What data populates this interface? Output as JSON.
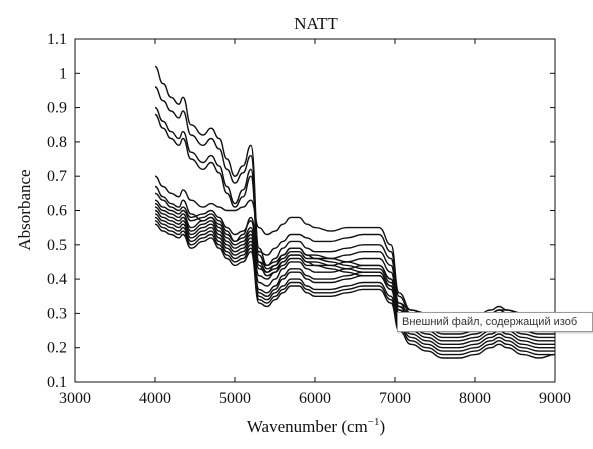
{
  "chart_data": {
    "type": "line",
    "title": "NATT",
    "xlabel": "Wavenumber (cm",
    "xlabel_sup": "−1",
    "xlabel_close": ")",
    "ylabel": "Absorbance",
    "xlim": [
      3000,
      9000
    ],
    "ylim": [
      0.1,
      1.1
    ],
    "xticks": [
      3000,
      4000,
      5000,
      6000,
      7000,
      8000,
      9000
    ],
    "xtick_labels": [
      "3000",
      "4000",
      "5000",
      "6000",
      "7000",
      "8000",
      "9000"
    ],
    "yticks": [
      0.1,
      0.2,
      0.3,
      0.4,
      0.5,
      0.6,
      0.7,
      0.8,
      0.9,
      1.0,
      1.1
    ],
    "ytick_labels": [
      "0.1",
      "0.2",
      "0.3",
      "0.4",
      "0.5",
      "0.6",
      "0.7",
      "0.8",
      "0.9",
      "1",
      "1.1"
    ],
    "grid": false,
    "line_color": "#111111",
    "profile_x": [
      4000,
      4100,
      4200,
      4300,
      4350,
      4450,
      4600,
      4700,
      4800,
      4900,
      5000,
      5100,
      5200,
      5300,
      5400,
      5500,
      5600,
      5700,
      5800,
      5900,
      6000,
      6200,
      6400,
      6600,
      6800,
      6950,
      7050,
      7200,
      7400,
      7600,
      7800,
      8000,
      8200,
      8300,
      8400,
      8600,
      8800,
      9000
    ],
    "series": [
      {
        "values": [
          1.02,
          0.97,
          0.93,
          0.91,
          0.93,
          0.85,
          0.82,
          0.84,
          0.81,
          0.75,
          0.7,
          0.73,
          0.79,
          0.49,
          0.44,
          0.45,
          0.47,
          0.49,
          0.49,
          0.47,
          0.47,
          0.46,
          0.45,
          0.44,
          0.44,
          0.4,
          0.33,
          0.31,
          0.3,
          0.28,
          0.28,
          0.29,
          0.3,
          0.31,
          0.31,
          0.3,
          0.29,
          0.29
        ]
      },
      {
        "values": [
          0.96,
          0.92,
          0.89,
          0.87,
          0.89,
          0.82,
          0.79,
          0.81,
          0.78,
          0.72,
          0.68,
          0.71,
          0.76,
          0.47,
          0.43,
          0.44,
          0.46,
          0.48,
          0.48,
          0.46,
          0.46,
          0.45,
          0.44,
          0.43,
          0.43,
          0.39,
          0.32,
          0.3,
          0.29,
          0.27,
          0.27,
          0.28,
          0.29,
          0.3,
          0.3,
          0.29,
          0.28,
          0.28
        ]
      },
      {
        "values": [
          0.9,
          0.86,
          0.83,
          0.81,
          0.83,
          0.77,
          0.74,
          0.76,
          0.73,
          0.67,
          0.62,
          0.66,
          0.72,
          0.45,
          0.42,
          0.43,
          0.45,
          0.47,
          0.47,
          0.45,
          0.45,
          0.44,
          0.43,
          0.42,
          0.42,
          0.38,
          0.31,
          0.29,
          0.28,
          0.26,
          0.26,
          0.27,
          0.28,
          0.29,
          0.29,
          0.28,
          0.27,
          0.27
        ]
      },
      {
        "values": [
          0.88,
          0.84,
          0.81,
          0.79,
          0.81,
          0.75,
          0.72,
          0.74,
          0.71,
          0.65,
          0.61,
          0.64,
          0.7,
          0.44,
          0.41,
          0.42,
          0.44,
          0.46,
          0.46,
          0.44,
          0.44,
          0.43,
          0.42,
          0.41,
          0.41,
          0.37,
          0.3,
          0.28,
          0.27,
          0.25,
          0.25,
          0.26,
          0.27,
          0.28,
          0.28,
          0.27,
          0.26,
          0.26
        ]
      },
      {
        "values": [
          0.7,
          0.67,
          0.65,
          0.64,
          0.66,
          0.63,
          0.61,
          0.62,
          0.61,
          0.6,
          0.6,
          0.61,
          0.63,
          0.55,
          0.53,
          0.54,
          0.56,
          0.58,
          0.58,
          0.56,
          0.55,
          0.54,
          0.55,
          0.55,
          0.55,
          0.5,
          0.36,
          0.31,
          0.29,
          0.28,
          0.28,
          0.29,
          0.31,
          0.32,
          0.31,
          0.29,
          0.28,
          0.28
        ]
      },
      {
        "values": [
          0.67,
          0.64,
          0.62,
          0.61,
          0.63,
          0.59,
          0.57,
          0.58,
          0.56,
          0.53,
          0.51,
          0.53,
          0.58,
          0.48,
          0.47,
          0.49,
          0.51,
          0.53,
          0.53,
          0.52,
          0.51,
          0.51,
          0.52,
          0.53,
          0.53,
          0.48,
          0.35,
          0.3,
          0.28,
          0.27,
          0.27,
          0.28,
          0.3,
          0.31,
          0.3,
          0.28,
          0.27,
          0.27
        ]
      },
      {
        "values": [
          0.65,
          0.63,
          0.61,
          0.6,
          0.61,
          0.58,
          0.59,
          0.6,
          0.58,
          0.55,
          0.53,
          0.54,
          0.57,
          0.45,
          0.44,
          0.46,
          0.49,
          0.51,
          0.51,
          0.49,
          0.48,
          0.48,
          0.49,
          0.5,
          0.5,
          0.46,
          0.33,
          0.29,
          0.27,
          0.25,
          0.25,
          0.26,
          0.28,
          0.29,
          0.28,
          0.26,
          0.25,
          0.25
        ]
      },
      {
        "values": [
          0.63,
          0.61,
          0.6,
          0.59,
          0.6,
          0.57,
          0.58,
          0.59,
          0.57,
          0.54,
          0.51,
          0.52,
          0.55,
          0.43,
          0.42,
          0.44,
          0.47,
          0.49,
          0.49,
          0.47,
          0.46,
          0.46,
          0.47,
          0.48,
          0.48,
          0.44,
          0.32,
          0.28,
          0.26,
          0.24,
          0.24,
          0.25,
          0.27,
          0.28,
          0.27,
          0.25,
          0.24,
          0.24
        ]
      },
      {
        "values": [
          0.62,
          0.6,
          0.59,
          0.58,
          0.59,
          0.55,
          0.57,
          0.58,
          0.55,
          0.52,
          0.5,
          0.51,
          0.54,
          0.41,
          0.4,
          0.42,
          0.45,
          0.47,
          0.47,
          0.45,
          0.44,
          0.44,
          0.45,
          0.46,
          0.46,
          0.42,
          0.31,
          0.27,
          0.25,
          0.23,
          0.23,
          0.24,
          0.26,
          0.27,
          0.26,
          0.24,
          0.23,
          0.23
        ]
      },
      {
        "values": [
          0.61,
          0.59,
          0.58,
          0.57,
          0.58,
          0.54,
          0.56,
          0.57,
          0.54,
          0.51,
          0.49,
          0.5,
          0.53,
          0.39,
          0.38,
          0.4,
          0.43,
          0.45,
          0.45,
          0.43,
          0.42,
          0.42,
          0.43,
          0.44,
          0.44,
          0.4,
          0.3,
          0.26,
          0.24,
          0.22,
          0.22,
          0.23,
          0.25,
          0.26,
          0.25,
          0.23,
          0.22,
          0.22
        ]
      },
      {
        "values": [
          0.6,
          0.58,
          0.57,
          0.56,
          0.57,
          0.53,
          0.55,
          0.56,
          0.53,
          0.5,
          0.48,
          0.49,
          0.52,
          0.37,
          0.36,
          0.38,
          0.41,
          0.43,
          0.43,
          0.41,
          0.4,
          0.4,
          0.41,
          0.42,
          0.42,
          0.38,
          0.29,
          0.25,
          0.23,
          0.21,
          0.21,
          0.22,
          0.24,
          0.25,
          0.24,
          0.22,
          0.21,
          0.21
        ]
      },
      {
        "values": [
          0.59,
          0.57,
          0.56,
          0.55,
          0.56,
          0.52,
          0.54,
          0.55,
          0.52,
          0.49,
          0.47,
          0.48,
          0.51,
          0.36,
          0.35,
          0.37,
          0.4,
          0.42,
          0.42,
          0.4,
          0.39,
          0.39,
          0.4,
          0.41,
          0.41,
          0.37,
          0.28,
          0.24,
          0.22,
          0.2,
          0.2,
          0.21,
          0.23,
          0.24,
          0.23,
          0.21,
          0.2,
          0.2
        ]
      },
      {
        "values": [
          0.58,
          0.56,
          0.55,
          0.54,
          0.55,
          0.51,
          0.53,
          0.54,
          0.51,
          0.48,
          0.46,
          0.47,
          0.5,
          0.35,
          0.34,
          0.36,
          0.38,
          0.4,
          0.4,
          0.38,
          0.37,
          0.37,
          0.38,
          0.39,
          0.39,
          0.35,
          0.27,
          0.23,
          0.21,
          0.19,
          0.19,
          0.2,
          0.22,
          0.23,
          0.22,
          0.2,
          0.19,
          0.19
        ]
      },
      {
        "values": [
          0.57,
          0.55,
          0.54,
          0.53,
          0.54,
          0.5,
          0.52,
          0.53,
          0.5,
          0.47,
          0.45,
          0.46,
          0.49,
          0.34,
          0.33,
          0.35,
          0.37,
          0.39,
          0.39,
          0.37,
          0.36,
          0.36,
          0.37,
          0.38,
          0.38,
          0.34,
          0.26,
          0.22,
          0.2,
          0.18,
          0.18,
          0.19,
          0.21,
          0.22,
          0.21,
          0.19,
          0.18,
          0.18
        ]
      },
      {
        "values": [
          0.56,
          0.54,
          0.53,
          0.52,
          0.53,
          0.49,
          0.51,
          0.52,
          0.49,
          0.46,
          0.44,
          0.45,
          0.48,
          0.33,
          0.32,
          0.34,
          0.36,
          0.38,
          0.38,
          0.36,
          0.35,
          0.35,
          0.36,
          0.37,
          0.37,
          0.33,
          0.25,
          0.21,
          0.19,
          0.17,
          0.17,
          0.18,
          0.2,
          0.21,
          0.2,
          0.18,
          0.17,
          0.18
        ]
      }
    ]
  },
  "tooltip": {
    "text": "Внешний файл, содержащий изоб"
  }
}
